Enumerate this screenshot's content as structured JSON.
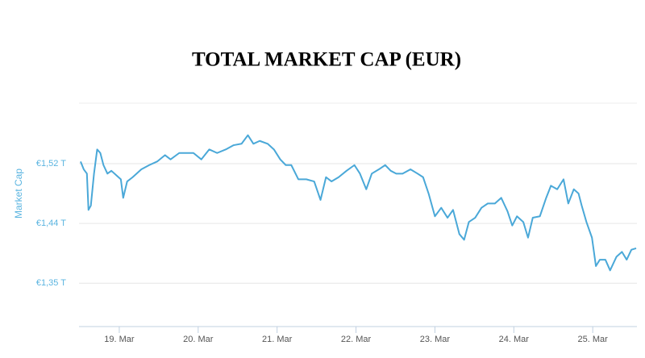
{
  "chart_data": {
    "type": "line",
    "title": "TOTAL MARKET CAP (EUR)",
    "y_label": "Market Cap",
    "x": [
      18.51,
      18.55,
      18.59,
      18.61,
      18.64,
      18.68,
      18.72,
      18.76,
      18.8,
      18.85,
      18.9,
      18.97,
      19.02,
      19.05,
      19.1,
      19.17,
      19.28,
      19.38,
      19.48,
      19.58,
      19.65,
      19.76,
      19.86,
      19.94,
      20.04,
      20.14,
      20.24,
      20.35,
      20.45,
      20.55,
      20.63,
      20.7,
      20.78,
      20.88,
      20.96,
      21.04,
      21.11,
      21.18,
      21.27,
      21.37,
      21.47,
      21.55,
      21.62,
      21.69,
      21.78,
      21.88,
      21.98,
      22.05,
      22.13,
      22.2,
      22.29,
      22.37,
      22.44,
      22.51,
      22.59,
      22.69,
      22.78,
      22.85,
      22.92,
      23.0,
      23.08,
      23.16,
      23.23,
      23.31,
      23.37,
      23.43,
      23.51,
      23.59,
      23.67,
      23.76,
      23.84,
      23.92,
      23.98,
      24.04,
      24.12,
      24.18,
      24.24,
      24.33,
      24.41,
      24.47,
      24.55,
      24.63,
      24.69,
      24.76,
      24.82,
      24.86,
      24.92,
      24.99,
      25.04,
      25.09,
      25.16,
      25.22,
      25.3,
      25.37,
      25.43,
      25.49,
      25.55
    ],
    "series": [
      {
        "name": "Market Cap",
        "color": "#4aa8d8",
        "values": [
          1.523,
          1.512,
          1.506,
          1.455,
          1.461,
          1.506,
          1.54,
          1.535,
          1.518,
          1.506,
          1.51,
          1.503,
          1.498,
          1.472,
          1.495,
          1.501,
          1.512,
          1.518,
          1.523,
          1.532,
          1.526,
          1.535,
          1.535,
          1.535,
          1.526,
          1.54,
          1.535,
          1.54,
          1.546,
          1.548,
          1.56,
          1.548,
          1.552,
          1.548,
          1.54,
          1.526,
          1.518,
          1.518,
          1.498,
          1.498,
          1.495,
          1.469,
          1.501,
          1.495,
          1.501,
          1.51,
          1.518,
          1.506,
          1.484,
          1.506,
          1.512,
          1.518,
          1.51,
          1.506,
          1.506,
          1.512,
          1.506,
          1.501,
          1.478,
          1.446,
          1.458,
          1.444,
          1.455,
          1.421,
          1.413,
          1.438,
          1.444,
          1.458,
          1.464,
          1.464,
          1.472,
          1.453,
          1.433,
          1.446,
          1.438,
          1.416,
          1.444,
          1.446,
          1.472,
          1.489,
          1.484,
          1.498,
          1.464,
          1.484,
          1.478,
          1.461,
          1.438,
          1.416,
          1.376,
          1.385,
          1.385,
          1.37,
          1.389,
          1.396,
          1.385,
          1.399,
          1.401
        ]
      }
    ],
    "xlim": [
      18.49,
      25.56
    ],
    "xticks": [
      {
        "value": 19,
        "label": "19. Mar"
      },
      {
        "value": 20,
        "label": "20. Mar"
      },
      {
        "value": 21,
        "label": "21. Mar"
      },
      {
        "value": 22,
        "label": "22. Mar"
      },
      {
        "value": 23,
        "label": "23. Mar"
      },
      {
        "value": 24,
        "label": "24. Mar"
      },
      {
        "value": 25,
        "label": "25. Mar"
      }
    ],
    "ylim": [
      1.291,
      1.605
    ],
    "yticks": [
      {
        "value": 1.352,
        "label": "€1,35 T"
      },
      {
        "value": 1.436,
        "label": "€1,44 T"
      },
      {
        "value": 1.52,
        "label": "€1,52 T"
      }
    ],
    "grid": true
  }
}
